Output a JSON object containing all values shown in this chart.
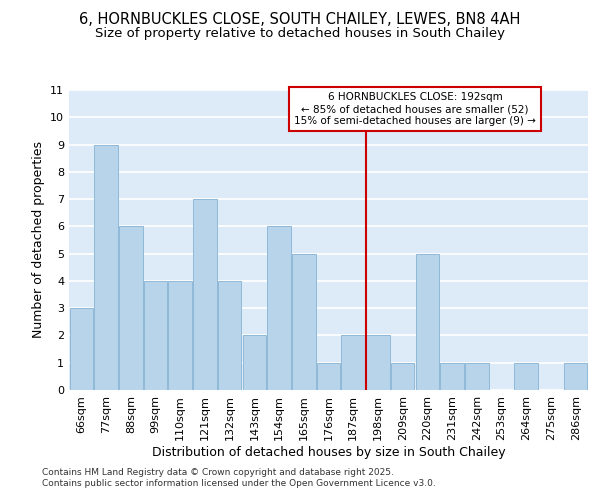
{
  "title_line1": "6, HORNBUCKLES CLOSE, SOUTH CHAILEY, LEWES, BN8 4AH",
  "title_line2": "Size of property relative to detached houses in South Chailey",
  "xlabel": "Distribution of detached houses by size in South Chailey",
  "ylabel": "Number of detached properties",
  "categories": [
    "66sqm",
    "77sqm",
    "88sqm",
    "99sqm",
    "110sqm",
    "121sqm",
    "132sqm",
    "143sqm",
    "154sqm",
    "165sqm",
    "176sqm",
    "187sqm",
    "198sqm",
    "209sqm",
    "220sqm",
    "231sqm",
    "242sqm",
    "253sqm",
    "264sqm",
    "275sqm",
    "286sqm"
  ],
  "values": [
    3,
    9,
    6,
    4,
    4,
    7,
    4,
    2,
    6,
    5,
    1,
    2,
    2,
    1,
    5,
    1,
    1,
    0,
    1,
    0,
    1
  ],
  "bar_color": "#b8d4ea",
  "bar_edge_color": "#90b8d8",
  "ref_line_x": 11.5,
  "ref_line_label": "6 HORNBUCKLES CLOSE: 192sqm",
  "ref_line_sub1": "← 85% of detached houses are smaller (52)",
  "ref_line_sub2": "15% of semi-detached houses are larger (9) →",
  "annotation_box_color": "#cc0000",
  "ylim": [
    0,
    11
  ],
  "yticks": [
    0,
    1,
    2,
    3,
    4,
    5,
    6,
    7,
    8,
    9,
    10,
    11
  ],
  "footnote_line1": "Contains HM Land Registry data © Crown copyright and database right 2025.",
  "footnote_line2": "Contains public sector information licensed under the Open Government Licence v3.0.",
  "background_color": "#ddeaf7",
  "grid_color": "#ffffff",
  "title_fontsize": 10.5,
  "subtitle_fontsize": 9.5,
  "axis_label_fontsize": 9,
  "tick_fontsize": 8,
  "annotation_fontsize": 7.5,
  "footnote_fontsize": 6.5
}
